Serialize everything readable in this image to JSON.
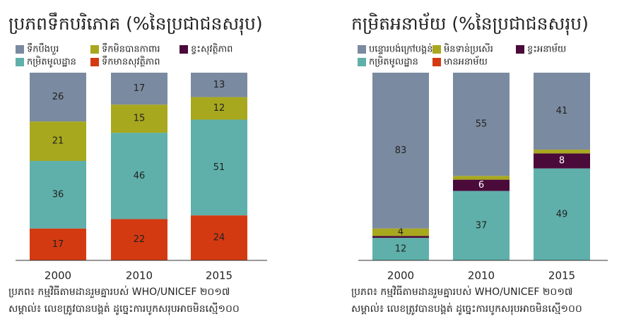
{
  "chart_data": [
    {
      "type": "stacked_bar",
      "title": "ប្រភពទឹកបរិភោគ (%នៃប្រជាជនសរុប)",
      "categories": [
        "2000",
        "2010",
        "2015"
      ],
      "ylim": [
        0,
        100
      ],
      "series": [
        {
          "name": "ទឹកបឹងបួរ",
          "color": "#7a8aa0",
          "values": [
            26,
            17,
            13
          ]
        },
        {
          "name": "ទឹកមិនបានកាពារ",
          "color": "#a8a81e",
          "values": [
            21,
            15,
            12
          ]
        },
        {
          "name": "ខ្វះសុវត្ថិភាព",
          "color": "#4a0a3a",
          "values": [
            0,
            0,
            0
          ],
          "value_labels": [
            null,
            null,
            null
          ]
        },
        {
          "name": "កម្រិតមូលដ្ឋាន",
          "color": "#5fb0aa",
          "values": [
            36,
            46,
            51
          ]
        },
        {
          "name": "ទឹកមានសុវត្ថិភាព",
          "color": "#d43a12",
          "values": [
            17,
            22,
            24
          ]
        }
      ],
      "source": "ប្រភព៖ កម្មវិធីតាមដានរួមគ្នារបស់ WHO/UNICEF ២០១៧",
      "note": "សម្គាល់៖ លេខត្រូវបានបង្គត់ ដូច្នេះការបូកសរុបអាចមិនស្មើ១០០"
    },
    {
      "type": "stacked_bar",
      "title": "កម្រិតអនាម័យ (%នៃប្រជាជនសរុប)",
      "categories": [
        "2000",
        "2010",
        "2015"
      ],
      "ylim": [
        0,
        100
      ],
      "series": [
        {
          "name": "បន្ទោរបង់ក្រៅបង្គន់",
          "color": "#7a8aa0",
          "values": [
            83,
            55,
            41
          ]
        },
        {
          "name": "មិនទាន់ប្រសើរ",
          "color": "#a8a81e",
          "values": [
            4,
            2,
            2
          ],
          "value_labels": [
            "4",
            null,
            null
          ]
        },
        {
          "name": "ខ្វះអនាម័យ",
          "color": "#4a0a3a",
          "values": [
            1,
            6,
            8
          ],
          "value_labels": [
            null,
            "6",
            "8"
          ]
        },
        {
          "name": "កម្រិតមូលដ្ឋាន",
          "color": "#5fb0aa",
          "values": [
            12,
            37,
            49
          ]
        },
        {
          "name": "មានអនាម័យ",
          "color": "#d43a12",
          "values": [
            0,
            0,
            0
          ],
          "value_labels": [
            null,
            null,
            null
          ]
        }
      ],
      "source": "ប្រភព៖ កម្មវិធីតាមដានរួមគ្នារបស់ WHO/UNICEF ២០១៧",
      "note": "សម្គាល់៖ លេខត្រូវបានបង្គត់ ដូច្នេះការបូកសរុបអាចមិនស្មើ១០០"
    }
  ]
}
